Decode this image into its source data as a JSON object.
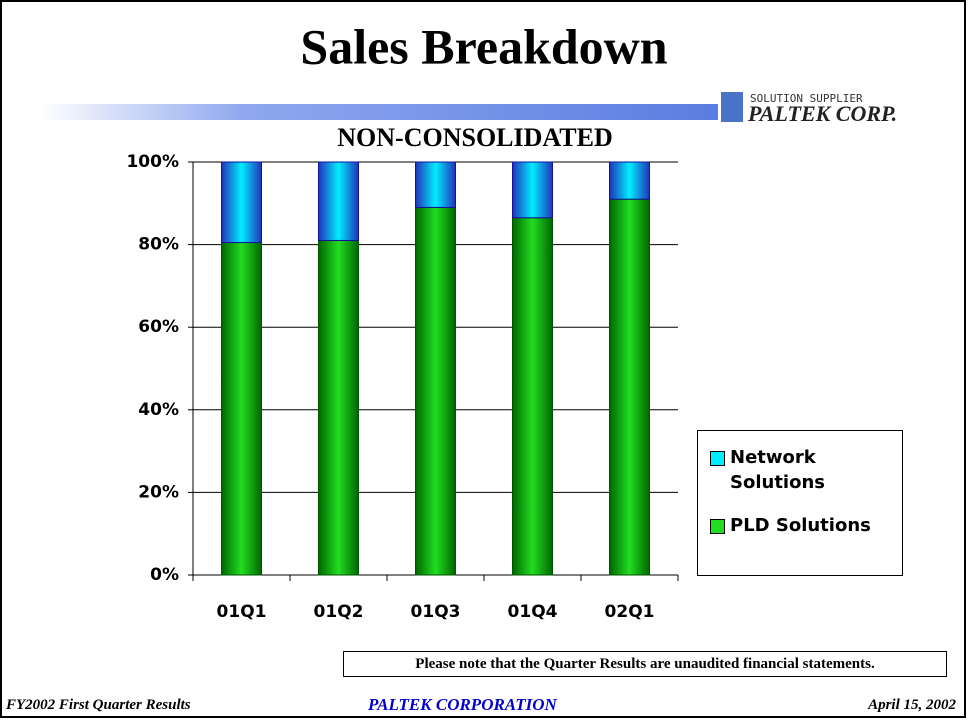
{
  "slide": {
    "title": "Sales Breakdown",
    "logo_tagline": "SOLUTION SUPPLIER",
    "logo_name": "PALTEK CORP.",
    "note": "Please note that the Quarter Results are unaudited financial statements.",
    "footer_left": "FY2002 First Quarter Results",
    "footer_center": "PALTEK CORPORATION",
    "footer_right": "April 15, 2002"
  },
  "chart_data": {
    "type": "stacked_bar",
    "title": "NON-CONSOLIDATED",
    "categories": [
      "01Q1",
      "01Q2",
      "01Q3",
      "01Q4",
      "02Q1"
    ],
    "series": [
      {
        "name": "PLD Solutions",
        "color": "#22dd22",
        "values": [
          80.5,
          81,
          89,
          86.5,
          91
        ]
      },
      {
        "name": "Network Solutions",
        "color": "#00eeff",
        "values": [
          19.5,
          19,
          11,
          13.5,
          9
        ]
      }
    ],
    "ylim": [
      0,
      100
    ],
    "yticks": [
      {
        "value": 0,
        "label": "0%"
      },
      {
        "value": 20,
        "label": "20%"
      },
      {
        "value": 40,
        "label": "40%"
      },
      {
        "value": 60,
        "label": "60%"
      },
      {
        "value": 80,
        "label": "80%"
      },
      {
        "value": 100,
        "label": "100%"
      }
    ],
    "grid": true,
    "legend": "right"
  }
}
